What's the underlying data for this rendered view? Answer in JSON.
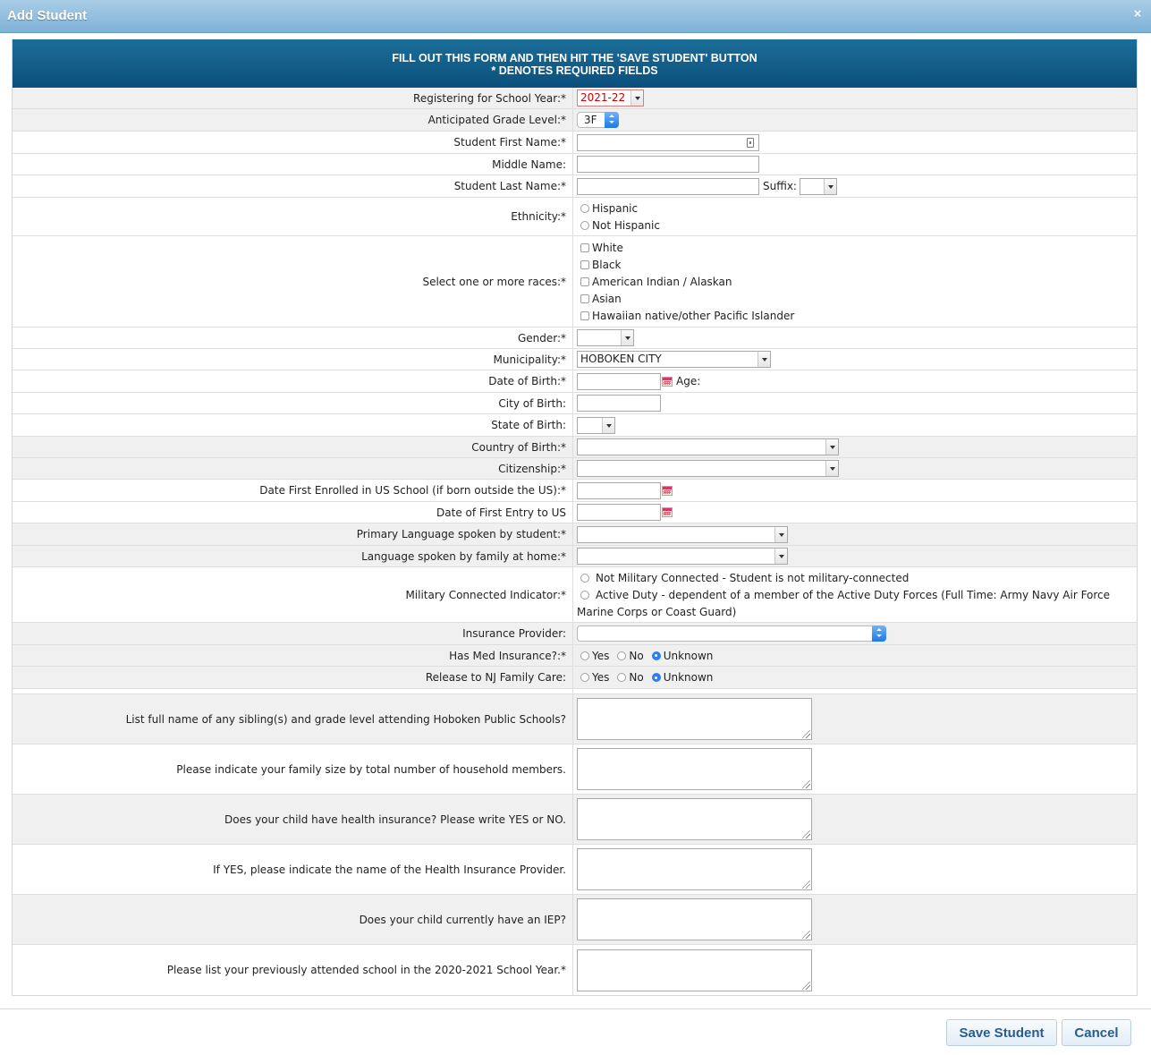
{
  "window": {
    "title": "Add Student",
    "close_glyph": "×"
  },
  "banner": {
    "line1": "FILL OUT THIS FORM AND THEN HIT THE 'SAVE STUDENT' BUTTON",
    "line2": "* DENOTES REQUIRED FIELDS"
  },
  "fields": {
    "school_year": {
      "label": "Registering for School Year:*",
      "value": "2021-22"
    },
    "grade_level": {
      "label": "Anticipated Grade Level:*",
      "value": "3F"
    },
    "first_name": {
      "label": "Student First Name:*",
      "value": ""
    },
    "middle_name": {
      "label": "Middle Name:",
      "value": ""
    },
    "last_name": {
      "label": "Student Last Name:*",
      "value": "",
      "suffix_label": "Suffix:",
      "suffix_value": ""
    },
    "ethnicity": {
      "label": "Ethnicity:*",
      "options": [
        "Hispanic",
        "Not Hispanic"
      ]
    },
    "races": {
      "label": "Select one or more races:*",
      "options": [
        "White",
        "Black",
        "American Indian / Alaskan",
        "Asian",
        "Hawaiian native/other Pacific Islander"
      ]
    },
    "gender": {
      "label": "Gender:*",
      "value": ""
    },
    "municipality": {
      "label": "Municipality:*",
      "value": "HOBOKEN CITY"
    },
    "dob": {
      "label": "Date of Birth:*",
      "value": "",
      "age_label": "Age:"
    },
    "city_of_birth": {
      "label": "City of Birth:",
      "value": ""
    },
    "state_of_birth": {
      "label": "State of Birth:",
      "value": ""
    },
    "country_of_birth": {
      "label": "Country of Birth:*",
      "value": ""
    },
    "citizenship": {
      "label": "Citizenship:*",
      "value": ""
    },
    "date_first_enrolled": {
      "label": "Date First Enrolled in US School (if born outside the US):*",
      "value": ""
    },
    "date_first_entry": {
      "label": "Date of First Entry to US",
      "value": ""
    },
    "primary_language": {
      "label": "Primary Language spoken by student:*",
      "value": ""
    },
    "home_language": {
      "label": "Language spoken by family at home:*",
      "value": ""
    },
    "military": {
      "label": "Military Connected Indicator:*",
      "option1": "Not Military Connected - Student is not military-connected",
      "option2_line1": "Active Duty - dependent of a member of the Active Duty Forces (Full Time: Army Navy Air Force",
      "option2_line2": "Marine Corps or Coast Guard)"
    },
    "insurance_provider": {
      "label": "Insurance Provider:",
      "value": ""
    },
    "med_insurance": {
      "label": "Has Med Insurance?:*",
      "options": [
        "Yes",
        "No",
        "Unknown"
      ],
      "selected": "Unknown"
    },
    "nj_family_care": {
      "label": "Release to NJ Family Care:",
      "options": [
        "Yes",
        "No",
        "Unknown"
      ],
      "selected": "Unknown"
    }
  },
  "questions": [
    "List full name of any sibling(s) and grade level attending Hoboken Public Schools?",
    "Please indicate your family size by total number of household members.",
    "Does your child have health insurance? Please write YES or NO.",
    "If YES, please indicate the name of the Health Insurance Provider.",
    "Does your child currently have an IEP?",
    "Please list your previously attended school in the 2020-2021 School Year.*"
  ],
  "buttons": {
    "save": "Save Student",
    "cancel": "Cancel"
  }
}
